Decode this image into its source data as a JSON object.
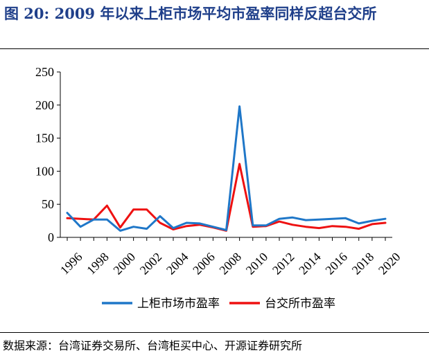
{
  "figure": {
    "title": "图 20:  2009 年以来上柜市场平均市盈率同样反超台交所",
    "source": "数据来源：台湾证券交易所、台湾柜买中心、开源证券研究所"
  },
  "chart_data": {
    "type": "line",
    "title": "",
    "xlabel": "",
    "ylabel": "",
    "x": [
      1996,
      1997,
      1998,
      1999,
      2000,
      2001,
      2002,
      2003,
      2004,
      2005,
      2006,
      2007,
      2008,
      2009,
      2010,
      2011,
      2012,
      2013,
      2014,
      2015,
      2016,
      2017,
      2018,
      2019,
      2020
    ],
    "x_tick_labels": [
      "1996",
      "1998",
      "2000",
      "2002",
      "2004",
      "2006",
      "2008",
      "2010",
      "2012",
      "2014",
      "2016",
      "2018",
      "2020"
    ],
    "ylim": [
      0,
      250
    ],
    "y_ticks": [
      0,
      50,
      100,
      150,
      200,
      250
    ],
    "grid": false,
    "legend_position": "bottom",
    "series": [
      {
        "name": "上柜市场市盈率",
        "color": "#1f77c8",
        "values": [
          37,
          16,
          27,
          27,
          10,
          16,
          13,
          32,
          14,
          22,
          21,
          16,
          11,
          198,
          18,
          18,
          28,
          30,
          26,
          27,
          28,
          29,
          21,
          25,
          28
        ]
      },
      {
        "name": "台交所市盈率",
        "color": "#ee1111",
        "values": [
          29,
          28,
          27,
          48,
          15,
          42,
          42,
          22,
          12,
          17,
          19,
          15,
          10,
          111,
          16,
          17,
          24,
          19,
          16,
          14,
          17,
          16,
          13,
          20,
          22
        ]
      }
    ]
  }
}
